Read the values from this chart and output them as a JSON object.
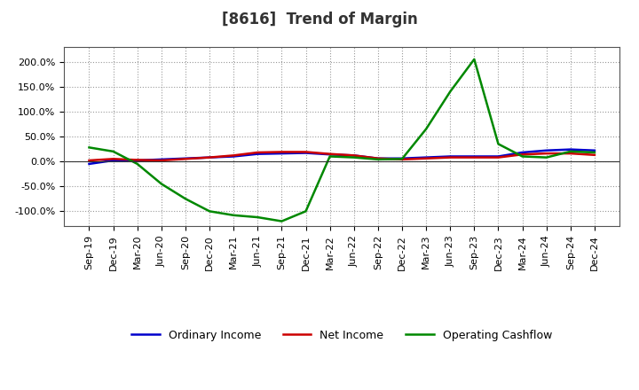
{
  "title": "[8616]  Trend of Margin",
  "x_labels": [
    "Sep-19",
    "Dec-19",
    "Mar-20",
    "Jun-20",
    "Sep-20",
    "Dec-20",
    "Mar-21",
    "Jun-21",
    "Sep-21",
    "Dec-21",
    "Mar-22",
    "Jun-22",
    "Sep-22",
    "Dec-22",
    "Mar-23",
    "Jun-23",
    "Sep-23",
    "Dec-23",
    "Mar-24",
    "Jun-24",
    "Sep-24",
    "Dec-24"
  ],
  "ordinary_income": [
    -5,
    2,
    2,
    4,
    6,
    8,
    10,
    15,
    16,
    17,
    14,
    12,
    6,
    6,
    8,
    10,
    10,
    10,
    18,
    22,
    24,
    22
  ],
  "net_income": [
    2,
    5,
    3,
    2,
    5,
    8,
    12,
    18,
    19,
    19,
    15,
    12,
    6,
    4,
    6,
    8,
    8,
    8,
    14,
    16,
    16,
    13
  ],
  "operating_cashflow": [
    28,
    20,
    -5,
    -45,
    -75,
    -100,
    -108,
    -112,
    -120,
    -100,
    10,
    8,
    4,
    5,
    65,
    140,
    205,
    35,
    10,
    8,
    20,
    18
  ],
  "ylim": [
    -130,
    230
  ],
  "yticks": [
    -100,
    -50,
    0,
    50,
    100,
    150,
    200
  ],
  "line_colors": {
    "ordinary_income": "#0000cc",
    "net_income": "#cc0000",
    "operating_cashflow": "#008800"
  },
  "background_color": "#ffffff",
  "plot_bg_color": "#ffffff",
  "grid_color": "#999999",
  "title_color": "#333333",
  "legend_labels": [
    "Ordinary Income",
    "Net Income",
    "Operating Cashflow"
  ]
}
